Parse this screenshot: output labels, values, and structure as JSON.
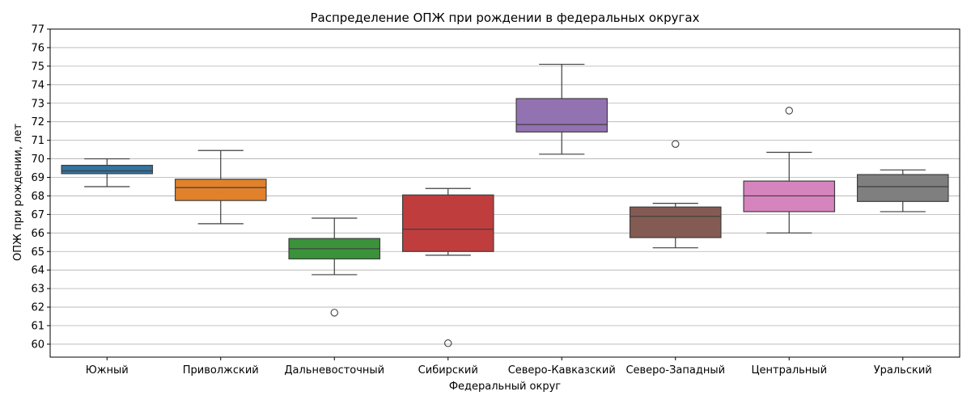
{
  "chart_data": {
    "type": "boxplot",
    "title": "Распределение ОПЖ при рождении в федеральных округах",
    "xlabel": "Федеральный округ",
    "ylabel": "ОПЖ при рождении, лет",
    "ylim": [
      59.3,
      77
    ],
    "yticks": [
      60,
      61,
      62,
      63,
      64,
      65,
      66,
      67,
      68,
      69,
      70,
      71,
      72,
      73,
      74,
      75,
      76,
      77
    ],
    "grid": "horizontal",
    "categories": [
      "Южный",
      "Приволжский",
      "Дальневосточный",
      "Сибирский",
      "Северо-Кавказский",
      "Северо-Западный",
      "Центральный",
      "Уральский"
    ],
    "boxes": [
      {
        "name": "Южный",
        "color": "#3274a1",
        "whisker_low": 68.5,
        "q1": 69.2,
        "median": 69.35,
        "q3": 69.65,
        "whisker_high": 70.0,
        "outliers": []
      },
      {
        "name": "Приволжский",
        "color": "#e1812c",
        "whisker_low": 66.5,
        "q1": 67.75,
        "median": 68.45,
        "q3": 68.9,
        "whisker_high": 70.45,
        "outliers": []
      },
      {
        "name": "Дальневосточный",
        "color": "#3a923a",
        "whisker_low": 63.75,
        "q1": 64.6,
        "median": 65.15,
        "q3": 65.7,
        "whisker_high": 66.8,
        "outliers": [
          61.7
        ]
      },
      {
        "name": "Сибирский",
        "color": "#c03d3e",
        "whisker_low": 64.8,
        "q1": 65.0,
        "median": 66.2,
        "q3": 68.05,
        "whisker_high": 68.4,
        "outliers": [
          60.05
        ]
      },
      {
        "name": "Северо-Кавказский",
        "color": "#9372b2",
        "whisker_low": 70.25,
        "q1": 71.45,
        "median": 71.85,
        "q3": 73.25,
        "whisker_high": 75.1,
        "outliers": []
      },
      {
        "name": "Северо-Западный",
        "color": "#845b53",
        "whisker_low": 65.2,
        "q1": 65.75,
        "median": 66.9,
        "q3": 67.4,
        "whisker_high": 67.6,
        "outliers": [
          70.8
        ]
      },
      {
        "name": "Центральный",
        "color": "#d684bd",
        "whisker_low": 66.0,
        "q1": 67.15,
        "median": 68.0,
        "q3": 68.8,
        "whisker_high": 70.35,
        "outliers": [
          72.6
        ]
      },
      {
        "name": "Уральский",
        "color": "#7f7f7f",
        "whisker_low": 67.15,
        "q1": 67.7,
        "median": 68.5,
        "q3": 69.15,
        "whisker_high": 69.4,
        "outliers": []
      }
    ]
  }
}
